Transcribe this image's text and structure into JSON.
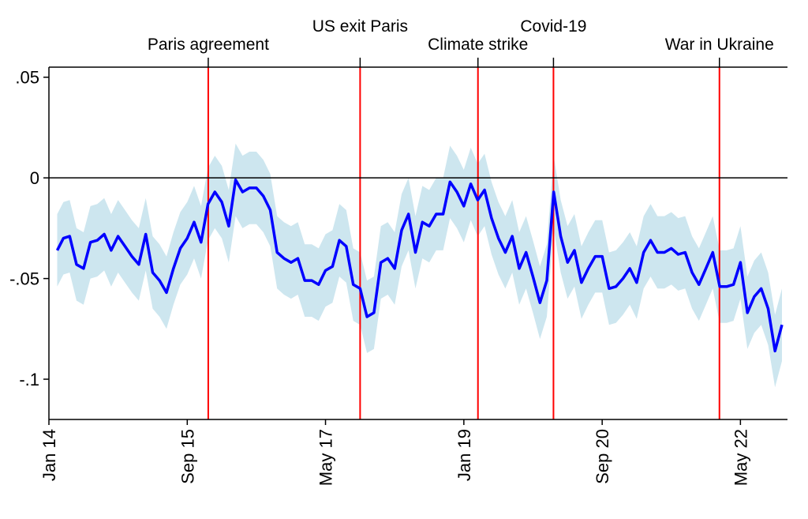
{
  "chart_data": {
    "type": "line",
    "xlim": [
      2014.0,
      2022.9
    ],
    "ylim": [
      -0.12,
      0.055
    ],
    "y_ticks": [
      {
        "value": 0.05,
        "label": ".05"
      },
      {
        "value": 0,
        "label": "0"
      },
      {
        "value": -0.05,
        "label": "-.05"
      },
      {
        "value": -0.1,
        "label": "-.1"
      }
    ],
    "x_ticks": [
      {
        "value": 2014.0,
        "label": "Jan 14"
      },
      {
        "value": 2015.667,
        "label": "Sep 15"
      },
      {
        "value": 2017.333,
        "label": "May 17"
      },
      {
        "value": 2019.0,
        "label": "Jan 19"
      },
      {
        "value": 2020.667,
        "label": "Sep 20"
      },
      {
        "value": 2022.333,
        "label": "May 22"
      }
    ],
    "events": [
      {
        "x": 2015.92,
        "label": "Paris agreement",
        "row": 2
      },
      {
        "x": 2017.75,
        "label": "US exit Paris",
        "row": 1
      },
      {
        "x": 2019.17,
        "label": "Climate strike",
        "row": 2
      },
      {
        "x": 2020.08,
        "label": "Covid-19",
        "row": 1
      },
      {
        "x": 2022.08,
        "label": "War in Ukraine",
        "row": 2
      }
    ],
    "reference_line": 0,
    "colors": {
      "line": "#0000ff",
      "band": "#cde6ef",
      "event": "#ff0000",
      "reference": "#000000"
    },
    "series": [
      {
        "x": [
          2014.1,
          2014.175,
          2014.25,
          2014.333,
          2014.417,
          2014.5,
          2014.583,
          2014.667,
          2014.75,
          2014.833,
          2014.917,
          2015.0,
          2015.083,
          2015.167,
          2015.25,
          2015.333,
          2015.417,
          2015.5,
          2015.583,
          2015.667,
          2015.75,
          2015.833,
          2015.917,
          2016.0,
          2016.083,
          2016.167,
          2016.25,
          2016.333,
          2016.417,
          2016.5,
          2016.583,
          2016.667,
          2016.75,
          2016.833,
          2016.917,
          2017.0,
          2017.083,
          2017.167,
          2017.25,
          2017.333,
          2017.417,
          2017.5,
          2017.583,
          2017.667,
          2017.75,
          2017.833,
          2017.917,
          2018.0,
          2018.083,
          2018.167,
          2018.25,
          2018.333,
          2018.417,
          2018.5,
          2018.583,
          2018.667,
          2018.75,
          2018.833,
          2018.917,
          2019.0,
          2019.083,
          2019.167,
          2019.25,
          2019.333,
          2019.417,
          2019.5,
          2019.583,
          2019.667,
          2019.75,
          2019.833,
          2019.917,
          2020.0,
          2020.083,
          2020.167,
          2020.25,
          2020.333,
          2020.417,
          2020.5,
          2020.583,
          2020.667,
          2020.75,
          2020.833,
          2020.917,
          2021.0,
          2021.083,
          2021.167,
          2021.25,
          2021.333,
          2021.417,
          2021.5,
          2021.583,
          2021.667,
          2021.75,
          2021.833,
          2021.917,
          2022.0,
          2022.083,
          2022.167,
          2022.25,
          2022.333,
          2022.417,
          2022.5,
          2022.583,
          2022.667,
          2022.75,
          2022.833
        ],
        "y": [
          -0.036,
          -0.03,
          -0.029,
          -0.043,
          -0.045,
          -0.032,
          -0.031,
          -0.028,
          -0.036,
          -0.029,
          -0.034,
          -0.039,
          -0.043,
          -0.028,
          -0.047,
          -0.051,
          -0.057,
          -0.045,
          -0.035,
          -0.03,
          -0.022,
          -0.032,
          -0.013,
          -0.007,
          -0.012,
          -0.024,
          -0.001,
          -0.007,
          -0.005,
          -0.005,
          -0.009,
          -0.016,
          -0.037,
          -0.04,
          -0.042,
          -0.04,
          -0.051,
          -0.051,
          -0.053,
          -0.046,
          -0.044,
          -0.031,
          -0.034,
          -0.053,
          -0.055,
          -0.069,
          -0.067,
          -0.042,
          -0.04,
          -0.045,
          -0.026,
          -0.018,
          -0.037,
          -0.022,
          -0.024,
          -0.018,
          -0.018,
          -0.002,
          -0.007,
          -0.014,
          -0.003,
          -0.011,
          -0.006,
          -0.02,
          -0.03,
          -0.037,
          -0.029,
          -0.045,
          -0.037,
          -0.049,
          -0.062,
          -0.051,
          -0.007,
          -0.029,
          -0.042,
          -0.036,
          -0.052,
          -0.045,
          -0.039,
          -0.039,
          -0.055,
          -0.054,
          -0.05,
          -0.045,
          -0.052,
          -0.037,
          -0.031,
          -0.037,
          -0.037,
          -0.035,
          -0.038,
          -0.037,
          -0.047,
          -0.053,
          -0.045,
          -0.037,
          -0.054,
          -0.054,
          -0.053,
          -0.042,
          -0.067,
          -0.059,
          -0.055,
          -0.065,
          -0.086,
          -0.073
        ],
        "ci_halfwidth": 0.018
      }
    ]
  }
}
